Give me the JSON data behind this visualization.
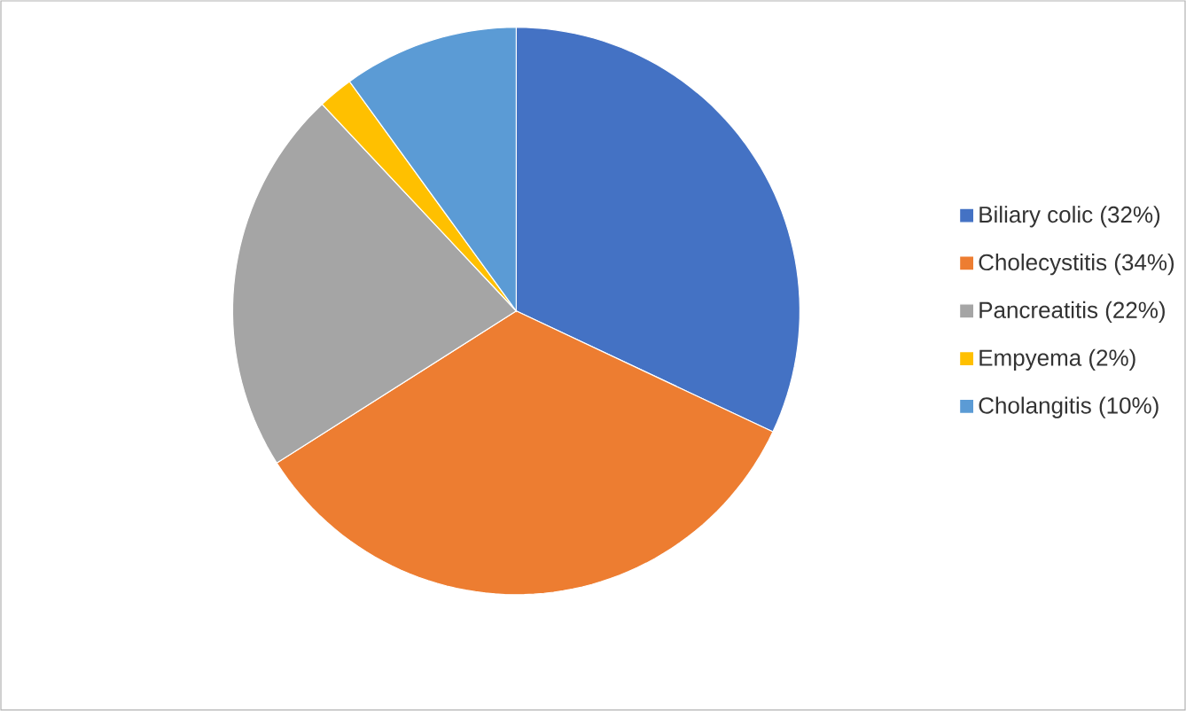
{
  "chart_data": {
    "type": "pie",
    "categories": [
      "Biliary colic (32%)",
      "Cholecystitis (34%)",
      "Pancreatitis (22%)",
      "Empyema (2%)",
      "Cholangitis (10%)"
    ],
    "values": [
      32,
      34,
      22,
      2,
      10
    ],
    "colors": [
      "#4472c4",
      "#ed7d31",
      "#a5a5a5",
      "#ffc000",
      "#5b9bd5"
    ],
    "legend": "right"
  }
}
